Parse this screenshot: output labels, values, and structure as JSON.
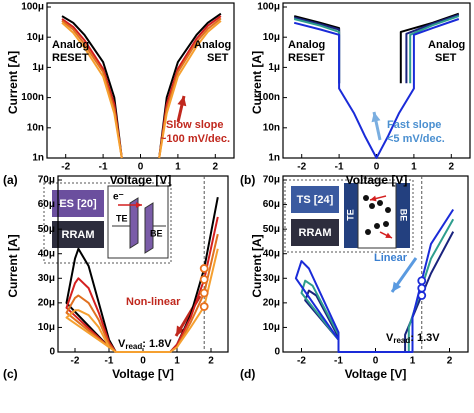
{
  "chart_data": [
    {
      "type": "line",
      "panel_label": "(a)",
      "x_label": "Voltage [V]",
      "y_label": "Current [A]",
      "log_y": true,
      "xlim": [
        -2.5,
        2.5
      ],
      "xticks": [
        -2,
        -1,
        0,
        1,
        2
      ],
      "ylim": [
        1e-09,
        0.0001
      ],
      "yticks": [
        {
          "value": 1e-09,
          "label": "1n"
        },
        {
          "value": 1e-08,
          "label": "10n"
        },
        {
          "value": 1e-07,
          "label": "100n"
        },
        {
          "value": 1e-06,
          "label": "1μ"
        },
        {
          "value": 1e-05,
          "label": "10μ"
        },
        {
          "value": 0.0001,
          "label": "100μ"
        }
      ],
      "x": [
        -2.1,
        -1.8,
        -1.5,
        -1.0,
        -0.7,
        -0.5,
        0,
        0.5,
        0.7,
        1.0,
        1.5,
        1.8,
        2.15
      ],
      "series": [
        {
          "color": "#000000",
          "values": [
            5e-05,
            3e-05,
            1.2e-05,
            1.5e-06,
            1e-07,
            1e-09,
            null,
            1e-09,
            1e-07,
            1.5e-06,
            1.2e-05,
            3e-05,
            6e-05
          ]
        },
        {
          "color": "#d42020",
          "values": [
            4e-05,
            2.2e-05,
            8e-06,
            9e-07,
            6e-08,
            1e-09,
            null,
            1e-09,
            6e-08,
            9e-07,
            9e-06,
            2.4e-05,
            5e-05
          ]
        },
        {
          "color": "#e07020",
          "values": [
            3.5e-05,
            1.8e-05,
            6e-06,
            7e-07,
            4e-08,
            1e-09,
            null,
            1e-09,
            4e-08,
            7e-07,
            7e-06,
            1.9e-05,
            4.2e-05
          ]
        },
        {
          "color": "#f5a030",
          "values": [
            3e-05,
            1.4e-05,
            4.5e-06,
            5e-07,
            3e-08,
            1e-09,
            null,
            1e-09,
            3e-08,
            5e-07,
            5e-06,
            1.5e-05,
            3.5e-05
          ]
        }
      ],
      "annotations": [
        {
          "text": "Analog",
          "color": "#000000"
        },
        {
          "text": "RESET",
          "color": "#000000"
        },
        {
          "text": "Analog",
          "color": "#000000"
        },
        {
          "text": "SET",
          "color": "#000000"
        },
        {
          "text": "Slow slope",
          "color": "#c0281e"
        },
        {
          "text": "~100 mV/dec.",
          "color": "#c0281e"
        }
      ]
    },
    {
      "type": "line",
      "panel_label": "(b)",
      "x_label": "Voltage [V]",
      "y_label": "Current [A]",
      "log_y": true,
      "xlim": [
        -2.5,
        2.5
      ],
      "xticks": [
        -2,
        -1,
        0,
        1,
        2
      ],
      "ylim": [
        1e-09,
        0.0001
      ],
      "yticks": [
        {
          "value": 1e-09,
          "label": "1n"
        },
        {
          "value": 1e-08,
          "label": "10n"
        },
        {
          "value": 1e-07,
          "label": "100n"
        },
        {
          "value": 1e-06,
          "label": "1μ"
        },
        {
          "value": 1e-05,
          "label": "10μ"
        },
        {
          "value": 0.0001,
          "label": "100μ"
        }
      ],
      "series": [
        {
          "color": "#000000",
          "x": [
            -2.2,
            -1.5,
            -1.0,
            -1.0,
            0,
            0.65,
            0.65,
            1.5,
            2.2
          ],
          "values": [
            5e-05,
            3e-05,
            2e-05,
            3e-07,
            null,
            3e-07,
            1.5e-05,
            3e-05,
            6e-05
          ]
        },
        {
          "color": "#1a237e",
          "x": [
            -2.2,
            -1.5,
            -1.0,
            -1.0,
            0,
            0.8,
            0.8,
            1.5,
            2.2
          ],
          "values": [
            4.5e-05,
            2.7e-05,
            1.8e-05,
            3e-07,
            null,
            3e-07,
            1.3e-05,
            2.8e-05,
            5.5e-05
          ]
        },
        {
          "color": "#2e9e8e",
          "x": [
            -2.2,
            -1.5,
            -1.0,
            -1.0,
            0,
            0.9,
            0.9,
            1.5,
            2.2
          ],
          "values": [
            4e-05,
            2.4e-05,
            1.5e-05,
            3e-07,
            null,
            3e-07,
            1.2e-05,
            2.5e-05,
            5e-05
          ]
        },
        {
          "color": "#1a2bd8",
          "x": [
            -2.2,
            -1.5,
            -1.0,
            -1.0,
            -0.6,
            -0.3,
            0,
            0.3,
            0.6,
            1.0,
            1.0,
            1.5,
            2.2
          ],
          "values": [
            3e-05,
            1.8e-05,
            1.2e-05,
            2e-07,
            3e-08,
            5e-09,
            1e-09,
            5e-09,
            3e-08,
            2e-07,
            1.2e-05,
            2e-05,
            4e-05
          ]
        }
      ],
      "annotations": [
        {
          "text": "Analog",
          "color": "#000000"
        },
        {
          "text": "RESET",
          "color": "#000000"
        },
        {
          "text": "Analog",
          "color": "#000000"
        },
        {
          "text": "SET",
          "color": "#000000"
        },
        {
          "text": "Fast slope",
          "color": "#4a8fd0"
        },
        {
          "text": "<5 mV/dec.",
          "color": "#4a8fd0"
        }
      ]
    },
    {
      "type": "line",
      "panel_label": "(c)",
      "x_label": "Voltage [V]",
      "y_label": "Current [A]",
      "log_y": false,
      "xlim": [
        -2.5,
        2.5
      ],
      "xticks": [
        -2,
        -1,
        0,
        1,
        2
      ],
      "ylim": [
        0,
        7e-05
      ],
      "yticks": [
        0,
        {
          "value": 1e-05,
          "label": "10μ"
        },
        {
          "value": 2e-05,
          "label": "20μ"
        },
        {
          "value": 3e-05,
          "label": "30μ"
        },
        {
          "value": 4e-05,
          "label": "40μ"
        },
        {
          "value": 5e-05,
          "label": "50μ"
        },
        {
          "value": 6e-05,
          "label": "60μ"
        },
        {
          "value": 7e-05,
          "label": "70μ"
        }
      ],
      "x": [
        -1.0,
        -2.25,
        -2.0,
        -1.9,
        -1.6,
        -1.3,
        -1.0,
        -0.8,
        0.8,
        1.0,
        1.4,
        1.8,
        2.2
      ],
      "series": [
        {
          "color": "#000000",
          "values": [
            2e-06,
            2e-05,
            3.8e-05,
            4.2e-05,
            3.5e-05,
            2e-05,
            5e-06,
            0,
            0,
            3e-06,
            1.5e-05,
            3.4e-05,
            6.3e-05
          ]
        },
        {
          "color": "#d42020",
          "values": [
            2e-06,
            1.8e-05,
            2.8e-05,
            3e-05,
            2.6e-05,
            1.6e-05,
            4e-06,
            0,
            0,
            3e-06,
            1.4e-05,
            2.95e-05,
            5.5e-05
          ]
        },
        {
          "color": "#e07020",
          "values": [
            2e-06,
            1.6e-05,
            2.2e-05,
            2.3e-05,
            2e-05,
            1.3e-05,
            3e-06,
            0,
            0,
            2e-06,
            1.2e-05,
            2.4e-05,
            4.8e-05
          ]
        },
        {
          "color": "#f5a030",
          "values": [
            2e-06,
            1.4e-05,
            1.7e-05,
            1.7e-05,
            1.5e-05,
            1e-05,
            2e-06,
            0,
            0,
            2e-06,
            1e-05,
            1.85e-05,
            4.2e-05
          ]
        }
      ],
      "markers": {
        "color": "#e8701e",
        "x": [
          1.8,
          1.8,
          1.8,
          1.8
        ],
        "values": [
          3.4e-05,
          2.95e-05,
          2.4e-05,
          1.85e-05
        ]
      },
      "vline": 1.8,
      "annotations": [
        {
          "text": "ES [20]",
          "color": "#ffffff"
        },
        {
          "text": "RRAM",
          "color": "#ffffff"
        },
        {
          "text": "Non-linear",
          "color": "#c0281e"
        },
        {
          "text": "V",
          "color": "#000000"
        },
        {
          "text": "read",
          "color": "#000000"
        },
        {
          "text": ": 1.8V",
          "color": "#000000"
        },
        {
          "text": "e⁻",
          "color": "#000000"
        },
        {
          "text": "TE",
          "color": "#000000"
        },
        {
          "text": "BE",
          "color": "#000000"
        }
      ]
    },
    {
      "type": "line",
      "panel_label": "(d)",
      "x_label": "Voltage [V]",
      "y_label": "Current [A]",
      "log_y": false,
      "xlim": [
        -2.5,
        2.5
      ],
      "xticks": [
        -2,
        -1,
        0,
        1,
        2
      ],
      "ylim": [
        0,
        7e-05
      ],
      "yticks": [
        0,
        {
          "value": 1e-05,
          "label": "10μ"
        },
        {
          "value": 2e-05,
          "label": "20μ"
        },
        {
          "value": 3e-05,
          "label": "30μ"
        },
        {
          "value": 4e-05,
          "label": "40μ"
        },
        {
          "value": 5e-05,
          "label": "50μ"
        },
        {
          "value": 6e-05,
          "label": "60μ"
        },
        {
          "value": 7e-05,
          "label": "70μ"
        }
      ],
      "series": [
        {
          "color": "#1a237e",
          "x": [
            -1.0,
            -1.9,
            -1.8,
            -1.6,
            -1.0,
            -1.0,
            0.8,
            0.8,
            1.5,
            2.1
          ],
          "values": [
            5e-06,
            2.1e-05,
            2.5e-05,
            2.3e-05,
            6e-06,
            0,
            0,
            7e-06,
            3.2e-05,
            4.9e-05
          ]
        },
        {
          "color": "#2e9e8e",
          "x": [
            -1.0,
            -2.0,
            -1.9,
            -1.7,
            -1.0,
            -1.0,
            0.9,
            0.9,
            1.5,
            2.1
          ],
          "values": [
            5e-06,
            2.4e-05,
            2.9e-05,
            2.7e-05,
            7e-06,
            0,
            0,
            1e-05,
            3.8e-05,
            5.4e-05
          ]
        },
        {
          "color": "#1a2bd8",
          "x": [
            -1.0,
            -2.15,
            -2.0,
            -1.8,
            -1.0,
            -1.0,
            1.0,
            1.0,
            1.5,
            2.1
          ],
          "values": [
            5e-06,
            3e-05,
            3.7e-05,
            3.4e-05,
            8e-06,
            0,
            0,
            1.4e-05,
            4.4e-05,
            5.8e-05
          ]
        }
      ],
      "markers": {
        "color": "#1a2bd8",
        "x": [
          1.25,
          1.25,
          1.25
        ],
        "values": [
          2.9e-05,
          2.6e-05,
          2.3e-05
        ]
      },
      "vline": 1.25,
      "annotations": [
        {
          "text": "TS [24]",
          "color": "#ffffff"
        },
        {
          "text": "RRAM",
          "color": "#ffffff"
        },
        {
          "text": "Linear",
          "color": "#3a7fd0"
        },
        {
          "text": "V",
          "color": "#000000"
        },
        {
          "text": "read",
          "color": "#000000"
        },
        {
          "text": ": 1.3V",
          "color": "#000000"
        },
        {
          "text": "TE",
          "color": "#ffffff"
        },
        {
          "text": "BE",
          "color": "#ffffff"
        }
      ]
    }
  ]
}
